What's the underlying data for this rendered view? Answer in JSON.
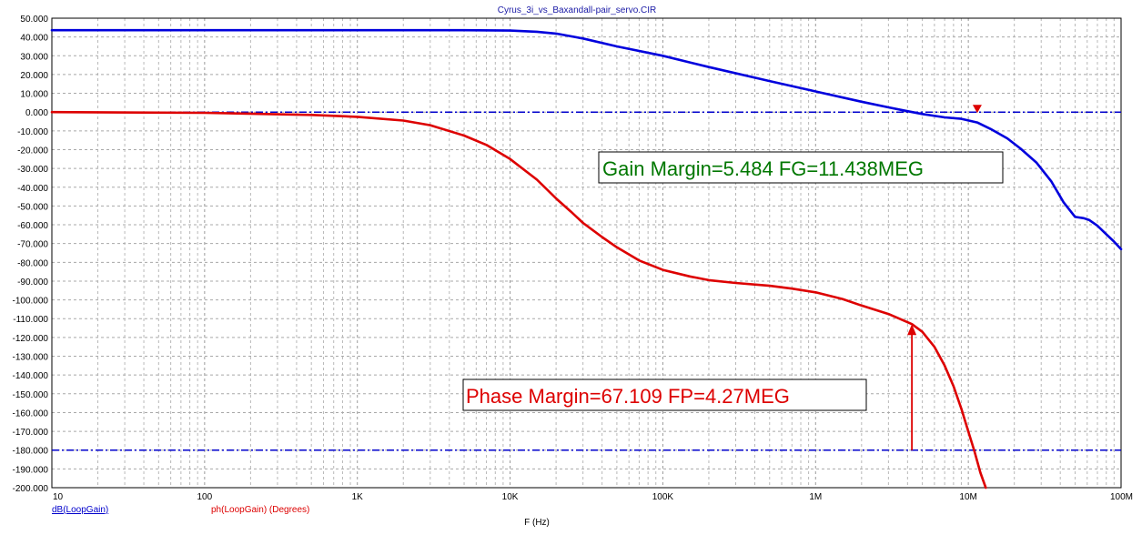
{
  "chart_data": {
    "type": "line",
    "title": "Cyrus_3i_vs_Baxandall-pair_servo.CIR",
    "xlabel": "F (Hz)",
    "x_scale": "log",
    "xlim": [
      10,
      100000000
    ],
    "ylim": [
      -200,
      50
    ],
    "y_tick_step": 10,
    "grid": true,
    "x_ticks": [
      {
        "value": 10,
        "label": "10"
      },
      {
        "value": 100,
        "label": "100"
      },
      {
        "value": 1000,
        "label": "1K"
      },
      {
        "value": 10000,
        "label": "10K"
      },
      {
        "value": 100000,
        "label": "100K"
      },
      {
        "value": 1000000,
        "label": "1M"
      },
      {
        "value": 10000000,
        "label": "10M"
      },
      {
        "value": 100000000,
        "label": "100M"
      }
    ],
    "y_tick_labels": [
      "50.000",
      "40.000",
      "30.000",
      "20.000",
      "10.000",
      "0.000",
      "-10.000",
      "-20.000",
      "-30.000",
      "-40.000",
      "-50.000",
      "-60.000",
      "-70.000",
      "-80.000",
      "-90.000",
      "-100.000",
      "-110.000",
      "-120.000",
      "-130.000",
      "-140.000",
      "-150.000",
      "-160.000",
      "-170.000",
      "-180.000",
      "-190.000",
      "-200.000"
    ],
    "reference_lines": [
      {
        "y": 0,
        "color": "#0000cc",
        "style": "dash-dot"
      },
      {
        "y": -180,
        "color": "#0000cc",
        "style": "dash-dot"
      }
    ],
    "series": [
      {
        "name": "dB(LoopGain)",
        "color": "#0000dd",
        "x": [
          10,
          100,
          1000,
          5000,
          10000,
          15000,
          20000,
          30000,
          50000,
          100000,
          200000,
          500000,
          1000000,
          2000000,
          3000000,
          4000000,
          5000000,
          7000000,
          9000000,
          11438000,
          14000000,
          18000000,
          22000000,
          28000000,
          35000000,
          42000000,
          50000000,
          57000000,
          62000000,
          70000000,
          80000000,
          90000000,
          100000000
        ],
        "y": [
          43.6,
          43.6,
          43.6,
          43.6,
          43.4,
          42.8,
          41.8,
          39.2,
          35.0,
          30.0,
          24.0,
          16.5,
          11.0,
          5.5,
          2.5,
          0.5,
          -1.0,
          -2.8,
          -3.6,
          -5.5,
          -9.0,
          -14.0,
          -19.5,
          -27.0,
          -37.0,
          -48.0,
          -55.8,
          -56.5,
          -57.5,
          -60.5,
          -65.0,
          -69.0,
          -73.0
        ]
      },
      {
        "name": "ph(LoopGain) (Degrees)",
        "color": "#dd0000",
        "x": [
          10,
          100,
          500,
          1000,
          2000,
          3000,
          5000,
          7000,
          10000,
          15000,
          20000,
          25000,
          30000,
          40000,
          50000,
          70000,
          100000,
          150000,
          200000,
          300000,
          500000,
          700000,
          1000000,
          1500000,
          2000000,
          3000000,
          4270000,
          5000000,
          6000000,
          7000000,
          8000000,
          9000000,
          10000000,
          11000000,
          12000000,
          13000000
        ],
        "y": [
          0,
          -0.4,
          -1.5,
          -2.5,
          -4.5,
          -7.0,
          -12.5,
          -17.5,
          -25.0,
          -36.0,
          -46.0,
          -53.0,
          -59.0,
          -66.5,
          -72.0,
          -79.0,
          -84.0,
          -87.5,
          -89.5,
          -91.0,
          -92.5,
          -94.0,
          -96.0,
          -99.5,
          -103.0,
          -107.5,
          -112.9,
          -117.0,
          -125.0,
          -135.0,
          -146.0,
          -158.0,
          -170.0,
          -181.0,
          -192.0,
          -200.0
        ]
      }
    ],
    "markers": [
      {
        "type": "down-triangle",
        "x": 11438000,
        "y": 0,
        "color": "#dd0000"
      },
      {
        "type": "up-arrow",
        "x": 4270000,
        "y_from": -180,
        "y_to": -112.9,
        "color": "#dd0000"
      }
    ],
    "annotations": [
      {
        "text": "Gain Margin=5.484 FG=11.438MEG",
        "color": "#007700"
      },
      {
        "text": "Phase Margin=67.109 FP=4.27MEG",
        "color": "#dd0000"
      }
    ],
    "legend": [
      {
        "text": "dB(LoopGain)",
        "color": "#0000cc"
      },
      {
        "text": "ph(LoopGain) (Degrees)",
        "color": "#dd0000"
      }
    ]
  }
}
